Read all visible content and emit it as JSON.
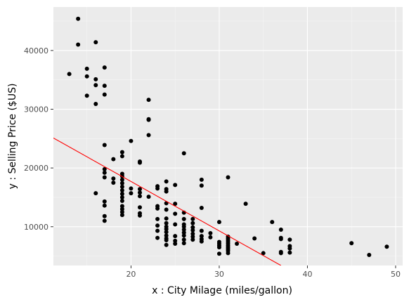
{
  "chart_data": {
    "type": "scatter",
    "title": "",
    "xlabel": "x  :   City Milage (miles/gallon)",
    "ylabel": "y  :   Selling Price ($US)",
    "xlim": [
      11.2,
      50.8
    ],
    "ylim": [
      3400,
      47400
    ],
    "x_ticks": [
      20,
      30,
      40,
      50
    ],
    "y_ticks": [
      10000,
      20000,
      30000,
      40000
    ],
    "x_tick_labels": [
      "20",
      "30",
      "40",
      "50"
    ],
    "y_tick_labels": [
      "10000",
      "20000",
      "30000",
      "40000"
    ],
    "grid": true,
    "legend": "none",
    "colors": {
      "panel_background": "#ebebeb",
      "grid_major": "#ffffff",
      "grid_minor": "#f5f5f5",
      "points": "#000000",
      "fit_line": "#ff0000"
    },
    "fit_line": {
      "x": [
        11.2,
        37.0
      ],
      "y": [
        25100,
        3400
      ]
    },
    "points": [
      {
        "x": 13,
        "y": 36000
      },
      {
        "x": 14,
        "y": 45400
      },
      {
        "x": 14,
        "y": 41000
      },
      {
        "x": 15,
        "y": 36900
      },
      {
        "x": 15,
        "y": 35600
      },
      {
        "x": 15,
        "y": 32300
      },
      {
        "x": 16,
        "y": 41400
      },
      {
        "x": 16,
        "y": 35100
      },
      {
        "x": 16,
        "y": 34100
      },
      {
        "x": 16,
        "y": 30900
      },
      {
        "x": 16,
        "y": 15700
      },
      {
        "x": 17,
        "y": 37100
      },
      {
        "x": 17,
        "y": 34000
      },
      {
        "x": 17,
        "y": 32500
      },
      {
        "x": 17,
        "y": 23900
      },
      {
        "x": 17,
        "y": 19800
      },
      {
        "x": 17,
        "y": 19200
      },
      {
        "x": 17,
        "y": 18400
      },
      {
        "x": 17,
        "y": 14300
      },
      {
        "x": 17,
        "y": 13600
      },
      {
        "x": 17,
        "y": 11800
      },
      {
        "x": 17,
        "y": 11000
      },
      {
        "x": 18,
        "y": 21500
      },
      {
        "x": 18,
        "y": 18200
      },
      {
        "x": 18,
        "y": 17500
      },
      {
        "x": 19,
        "y": 22700
      },
      {
        "x": 19,
        "y": 22000
      },
      {
        "x": 19,
        "y": 19000
      },
      {
        "x": 19,
        "y": 18600
      },
      {
        "x": 19,
        "y": 18000
      },
      {
        "x": 19,
        "y": 17400
      },
      {
        "x": 19,
        "y": 16800
      },
      {
        "x": 19,
        "y": 16200
      },
      {
        "x": 19,
        "y": 15600
      },
      {
        "x": 19,
        "y": 15000
      },
      {
        "x": 19,
        "y": 14400
      },
      {
        "x": 19,
        "y": 13500
      },
      {
        "x": 19,
        "y": 13000
      },
      {
        "x": 19,
        "y": 12500
      },
      {
        "x": 19,
        "y": 12000
      },
      {
        "x": 20,
        "y": 24600
      },
      {
        "x": 20,
        "y": 16500
      },
      {
        "x": 20,
        "y": 15700
      },
      {
        "x": 21,
        "y": 21100
      },
      {
        "x": 21,
        "y": 20900
      },
      {
        "x": 21,
        "y": 16400
      },
      {
        "x": 21,
        "y": 15800
      },
      {
        "x": 21,
        "y": 15200
      },
      {
        "x": 21,
        "y": 13300
      },
      {
        "x": 21,
        "y": 12300
      },
      {
        "x": 21,
        "y": 11900
      },
      {
        "x": 22,
        "y": 31600
      },
      {
        "x": 22,
        "y": 28300
      },
      {
        "x": 22,
        "y": 28200
      },
      {
        "x": 22,
        "y": 25600
      },
      {
        "x": 22,
        "y": 15100
      },
      {
        "x": 23,
        "y": 16900
      },
      {
        "x": 23,
        "y": 16500
      },
      {
        "x": 23,
        "y": 13500
      },
      {
        "x": 23,
        "y": 13100
      },
      {
        "x": 23,
        "y": 11300
      },
      {
        "x": 23,
        "y": 10200
      },
      {
        "x": 23,
        "y": 9300
      },
      {
        "x": 23,
        "y": 8100
      },
      {
        "x": 24,
        "y": 17700
      },
      {
        "x": 24,
        "y": 16400
      },
      {
        "x": 24,
        "y": 16000
      },
      {
        "x": 24,
        "y": 14000
      },
      {
        "x": 24,
        "y": 12900
      },
      {
        "x": 24,
        "y": 11400
      },
      {
        "x": 24,
        "y": 10600
      },
      {
        "x": 24,
        "y": 10000
      },
      {
        "x": 24,
        "y": 9600
      },
      {
        "x": 24,
        "y": 9100
      },
      {
        "x": 24,
        "y": 8500
      },
      {
        "x": 24,
        "y": 8000
      },
      {
        "x": 24,
        "y": 7700
      },
      {
        "x": 24,
        "y": 6900
      },
      {
        "x": 25,
        "y": 17100
      },
      {
        "x": 25,
        "y": 13900
      },
      {
        "x": 25,
        "y": 12200
      },
      {
        "x": 25,
        "y": 10400
      },
      {
        "x": 25,
        "y": 8400
      },
      {
        "x": 25,
        "y": 7600
      },
      {
        "x": 25,
        "y": 7100
      },
      {
        "x": 26,
        "y": 22500
      },
      {
        "x": 26,
        "y": 12400
      },
      {
        "x": 26,
        "y": 11300
      },
      {
        "x": 26,
        "y": 10400
      },
      {
        "x": 26,
        "y": 10000
      },
      {
        "x": 26,
        "y": 9500
      },
      {
        "x": 26,
        "y": 9000
      },
      {
        "x": 26,
        "y": 8500
      },
      {
        "x": 26,
        "y": 7800
      },
      {
        "x": 26,
        "y": 7200
      },
      {
        "x": 27,
        "y": 11300
      },
      {
        "x": 27,
        "y": 10600
      },
      {
        "x": 27,
        "y": 9900
      },
      {
        "x": 27,
        "y": 9400
      },
      {
        "x": 27,
        "y": 8800
      },
      {
        "x": 27,
        "y": 8300
      },
      {
        "x": 27,
        "y": 7800
      },
      {
        "x": 28,
        "y": 18000
      },
      {
        "x": 28,
        "y": 17000
      },
      {
        "x": 28,
        "y": 13200
      },
      {
        "x": 28,
        "y": 9300
      },
      {
        "x": 28,
        "y": 8400
      },
      {
        "x": 28,
        "y": 7900
      },
      {
        "x": 28,
        "y": 7500
      },
      {
        "x": 29,
        "y": 8900
      },
      {
        "x": 29,
        "y": 8200
      },
      {
        "x": 30,
        "y": 10800
      },
      {
        "x": 30,
        "y": 7400
      },
      {
        "x": 30,
        "y": 7100
      },
      {
        "x": 30,
        "y": 6800
      },
      {
        "x": 30,
        "y": 6500
      },
      {
        "x": 30,
        "y": 5400
      },
      {
        "x": 31,
        "y": 18400
      },
      {
        "x": 31,
        "y": 8300
      },
      {
        "x": 31,
        "y": 8000
      },
      {
        "x": 31,
        "y": 7700
      },
      {
        "x": 31,
        "y": 7400
      },
      {
        "x": 31,
        "y": 7100
      },
      {
        "x": 31,
        "y": 6800
      },
      {
        "x": 31,
        "y": 6500
      },
      {
        "x": 31,
        "y": 6200
      },
      {
        "x": 31,
        "y": 5900
      },
      {
        "x": 31,
        "y": 5500
      },
      {
        "x": 32,
        "y": 7100
      },
      {
        "x": 33,
        "y": 13900
      },
      {
        "x": 34,
        "y": 8000
      },
      {
        "x": 35,
        "y": 5500
      },
      {
        "x": 36,
        "y": 10800
      },
      {
        "x": 37,
        "y": 9500
      },
      {
        "x": 37,
        "y": 8100
      },
      {
        "x": 37,
        "y": 7900
      },
      {
        "x": 37,
        "y": 5700
      },
      {
        "x": 37,
        "y": 5500
      },
      {
        "x": 38,
        "y": 7800
      },
      {
        "x": 38,
        "y": 6700
      },
      {
        "x": 38,
        "y": 6300
      },
      {
        "x": 38,
        "y": 5600
      },
      {
        "x": 45,
        "y": 7200
      },
      {
        "x": 47,
        "y": 5200
      },
      {
        "x": 49,
        "y": 6600
      }
    ]
  }
}
